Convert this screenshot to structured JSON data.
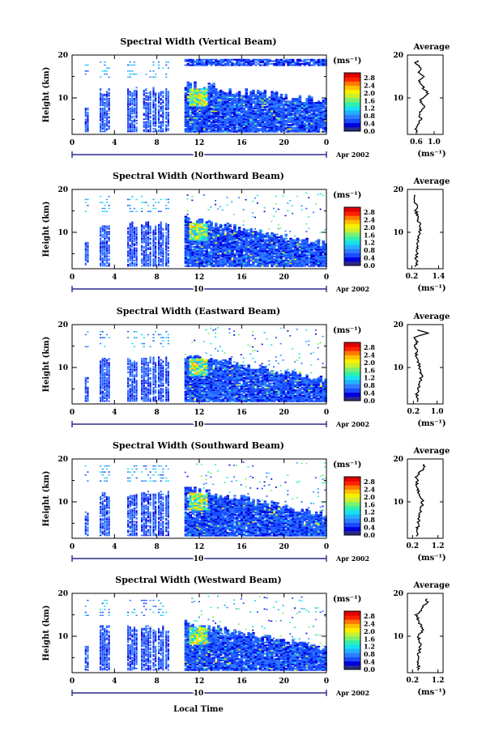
{
  "palette": [
    "#2a2a88",
    "#0000dd",
    "#1a4cff",
    "#2f7dff",
    "#22b0ff",
    "#18e0f0",
    "#30f0b0",
    "#7cf070",
    "#c8f030",
    "#f8f000",
    "#ffc000",
    "#ff7800",
    "#ff2000",
    "#e00000"
  ],
  "colorbar_ticks": [
    "2.8",
    "2.4",
    "2.0",
    "1.6",
    "1.2",
    "0.8",
    "0.4",
    "0.0"
  ],
  "colorbar_unit": "(ms⁻¹)",
  "x_ticks": [
    "0",
    "4",
    "8",
    "12",
    "16",
    "20",
    "0"
  ],
  "y_ticks": [
    "20",
    "10"
  ],
  "height_label": "Height (km)",
  "date_day": "10",
  "date_label": "Apr 2002",
  "avg_title": "Average",
  "avg_unit": "(ms⁻¹)",
  "local_time_label": "Local Time",
  "chart_data": [
    {
      "type": "heatmap",
      "title": "Spectral Width (Vertical Beam)",
      "ylabel": "Height (km)",
      "x_range": [
        0,
        24
      ],
      "y_range": [
        1.5,
        20
      ],
      "color_range": [
        0.0,
        3.0
      ],
      "avg": {
        "title": "Average",
        "xlabel": "(ms⁻¹)",
        "x_ticks": [
          "0.6",
          "1.0"
        ],
        "x_range": [
          0.4,
          1.2
        ],
        "y": [
          2,
          3,
          4,
          5,
          6,
          7,
          8,
          9,
          10,
          11,
          12,
          13,
          14,
          15,
          16,
          17,
          18,
          19
        ],
        "x": [
          0.62,
          0.6,
          0.64,
          0.72,
          0.66,
          0.7,
          0.8,
          0.68,
          0.74,
          0.86,
          0.78,
          0.72,
          0.66,
          0.78,
          0.62,
          0.7,
          0.58,
          0.64
        ]
      }
    },
    {
      "type": "heatmap",
      "title": "Spectral Width (Northward Beam)",
      "ylabel": "Height (km)",
      "x_range": [
        0,
        24
      ],
      "y_range": [
        1.5,
        20
      ],
      "color_range": [
        0.0,
        3.0
      ],
      "avg": {
        "title": "Average",
        "xlabel": "(ms⁻¹)",
        "x_ticks": [
          "0.2",
          "1.4"
        ],
        "x_range": [
          0.0,
          1.6
        ],
        "y": [
          2,
          3,
          4,
          5,
          6,
          7,
          8,
          9,
          10,
          11,
          12,
          13,
          14,
          15,
          16,
          17,
          18,
          19
        ],
        "x": [
          0.4,
          0.42,
          0.38,
          0.45,
          0.42,
          0.44,
          0.48,
          0.5,
          0.55,
          0.6,
          0.56,
          0.48,
          0.44,
          0.38,
          0.46,
          0.3,
          0.36,
          0.28
        ]
      }
    },
    {
      "type": "heatmap",
      "title": "Spectral Width (Eastward Beam)",
      "ylabel": "Height (km)",
      "x_range": [
        0,
        24
      ],
      "y_range": [
        1.5,
        20
      ],
      "color_range": [
        0.0,
        3.0
      ],
      "avg": {
        "title": "Average",
        "xlabel": "(ms⁻¹)",
        "x_ticks": [
          "0.2",
          "1.0"
        ],
        "x_range": [
          0.0,
          1.2
        ],
        "y": [
          2,
          3,
          4,
          5,
          6,
          7,
          8,
          9,
          10,
          11,
          12,
          13,
          14,
          15,
          16,
          17,
          18,
          19
        ],
        "x": [
          0.3,
          0.34,
          0.32,
          0.36,
          0.4,
          0.44,
          0.48,
          0.46,
          0.42,
          0.38,
          0.34,
          0.3,
          0.32,
          0.26,
          0.34,
          0.22,
          0.7,
          0.28
        ]
      }
    },
    {
      "type": "heatmap",
      "title": "Spectral Width (Southward Beam)",
      "ylabel": "Height (km)",
      "x_range": [
        0,
        24
      ],
      "y_range": [
        1.5,
        20
      ],
      "color_range": [
        0.0,
        3.0
      ],
      "avg": {
        "title": "Average",
        "xlabel": "(ms⁻¹)",
        "x_ticks": [
          "0.2",
          "1.2"
        ],
        "x_range": [
          0.0,
          1.4
        ],
        "y": [
          2,
          3,
          4,
          5,
          6,
          7,
          8,
          9,
          10,
          11,
          12,
          13,
          14,
          15,
          16,
          17,
          18,
          19
        ],
        "x": [
          0.4,
          0.42,
          0.4,
          0.44,
          0.46,
          0.48,
          0.5,
          0.56,
          0.6,
          0.52,
          0.46,
          0.42,
          0.38,
          0.4,
          0.34,
          0.5,
          0.7,
          0.6
        ]
      }
    },
    {
      "type": "heatmap",
      "title": "Spectral Width (Westward Beam)",
      "ylabel": "Height (km)",
      "x_range": [
        0,
        24
      ],
      "y_range": [
        1.5,
        20
      ],
      "color_range": [
        0.0,
        3.0
      ],
      "avg": {
        "title": "Average",
        "xlabel": "(ms⁻¹)",
        "x_ticks": [
          "0.2",
          "1.2"
        ],
        "x_range": [
          0.0,
          1.4
        ],
        "y": [
          2,
          3,
          4,
          5,
          6,
          7,
          8,
          9,
          10,
          11,
          12,
          13,
          14,
          15,
          16,
          17,
          18,
          19
        ],
        "x": [
          0.42,
          0.44,
          0.42,
          0.46,
          0.44,
          0.48,
          0.5,
          0.46,
          0.44,
          0.56,
          0.6,
          0.48,
          0.4,
          0.36,
          0.52,
          0.58,
          0.8,
          0.7
        ]
      }
    }
  ]
}
